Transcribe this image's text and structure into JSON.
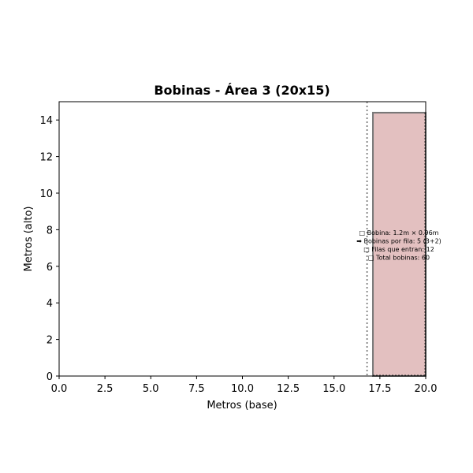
{
  "chart_data": {
    "type": "bar",
    "title": "Bobinas - Área 3 (20x15)",
    "xlabel": "Metros (base)",
    "ylabel": "Metros (alto)",
    "xlim": [
      0,
      20
    ],
    "ylim": [
      0,
      15
    ],
    "xticks": [
      "0.0",
      "2.5",
      "5.0",
      "7.5",
      "10.0",
      "12.5",
      "15.0",
      "17.5",
      "20.0"
    ],
    "xtick_values": [
      0,
      2.5,
      5,
      7.5,
      10,
      12.5,
      15,
      17.5,
      20
    ],
    "yticks": [
      "0",
      "2",
      "4",
      "6",
      "8",
      "10",
      "12",
      "14"
    ],
    "ytick_values": [
      0,
      2,
      4,
      6,
      8,
      10,
      12,
      14
    ],
    "grid": false,
    "coil_block": {
      "x_start": 17.12,
      "x_end": 20,
      "y_start": 0,
      "y_end": 14.4,
      "fill": "#e3c0c0",
      "edge": "#777777"
    },
    "guide_line_x": 16.8,
    "annotations": [
      "□ Bobina: 1.2m × 0.96m",
      "➡ Bobinas por fila: 5 (3+2)",
      "□ Filas que entran: 12",
      "□ Total bobinas: 60"
    ]
  }
}
